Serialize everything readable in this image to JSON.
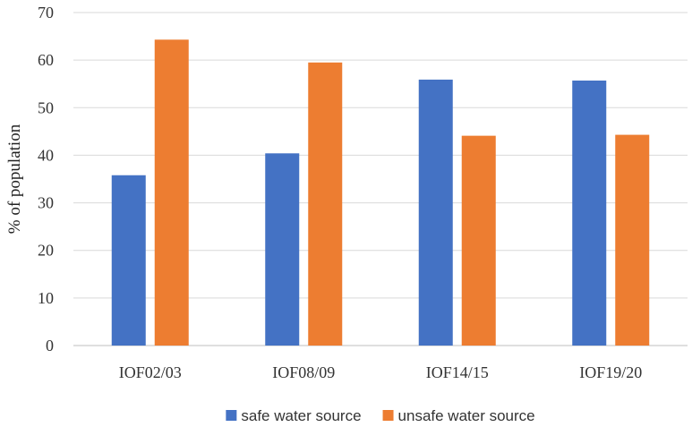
{
  "chart_data": {
    "type": "bar",
    "title": "",
    "xlabel": "",
    "ylabel": "% of population",
    "categories": [
      "IOF02/03",
      "IOF08/09",
      "IOF14/15",
      "IOF19/20"
    ],
    "series": [
      {
        "name": "safe water source",
        "values": [
          35.8,
          40.4,
          55.9,
          55.7
        ],
        "color": "#4472c4"
      },
      {
        "name": "unsafe water source",
        "values": [
          64.3,
          59.5,
          44.1,
          44.3
        ],
        "color": "#ed7d31"
      }
    ],
    "ylim": [
      0,
      70
    ],
    "yticks": [
      0,
      10,
      20,
      30,
      40,
      50,
      60,
      70
    ],
    "grid": true,
    "legend_position": "bottom-center"
  }
}
